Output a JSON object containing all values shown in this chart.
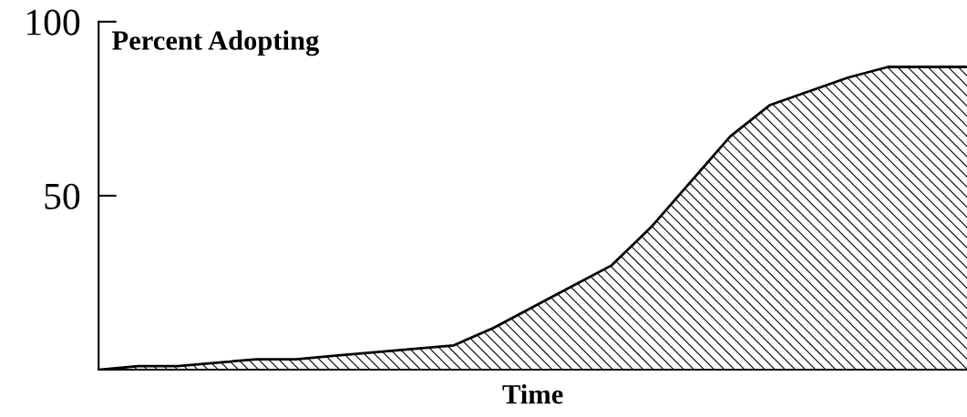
{
  "chart_data": {
    "type": "area",
    "ylabel": "Percent Adopting",
    "xlabel": "Time",
    "categories": [
      null,
      null,
      null,
      null,
      null,
      null,
      null,
      null,
      null,
      null,
      null,
      null,
      null,
      null,
      null,
      null,
      null,
      null,
      null,
      null,
      null,
      null,
      null
    ],
    "values": [
      0,
      1,
      1,
      2,
      3,
      3,
      4,
      5,
      6,
      7,
      12,
      18,
      24,
      30,
      41,
      54,
      67,
      76,
      80,
      84,
      87,
      87,
      87
    ],
    "color": "#000000",
    "ylim": [
      0,
      100
    ],
    "yticks": [
      100,
      50
    ]
  }
}
